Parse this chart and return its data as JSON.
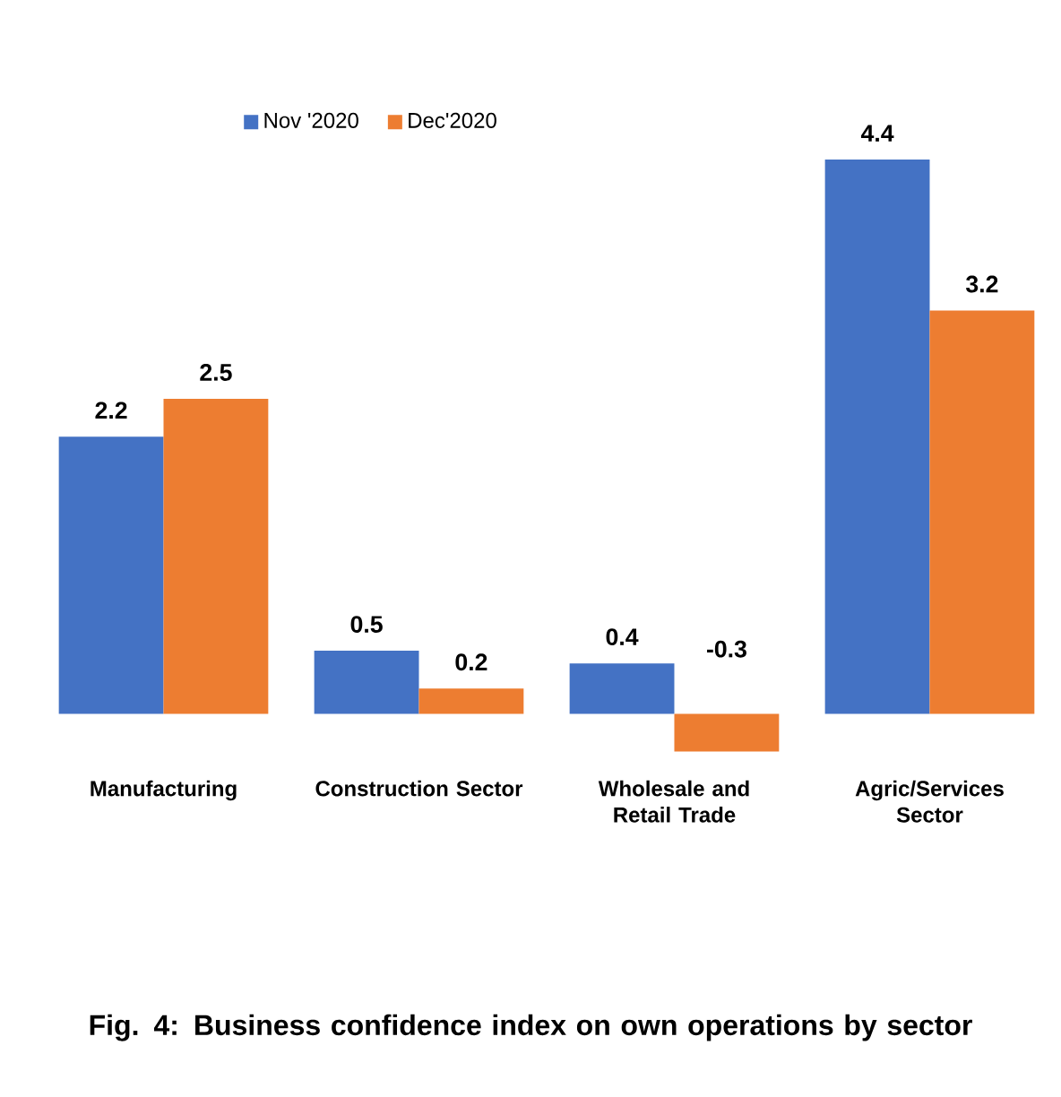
{
  "chart_data": {
    "type": "bar",
    "title": "Fig. 4: Business confidence index on own operations by sector",
    "categories": [
      "Manufacturing",
      "Construction Sector",
      "Wholesale and Retail Trade",
      "Agric/Services Sector"
    ],
    "series": [
      {
        "name": "Nov '2020",
        "color": "#4472c4",
        "values": [
          2.2,
          0.5,
          0.4,
          4.4
        ]
      },
      {
        "name": "Dec'2020",
        "color": "#ed7d31",
        "values": [
          2.5,
          0.2,
          -0.3,
          3.2
        ]
      }
    ],
    "data_labels": true,
    "legend": "top left"
  }
}
